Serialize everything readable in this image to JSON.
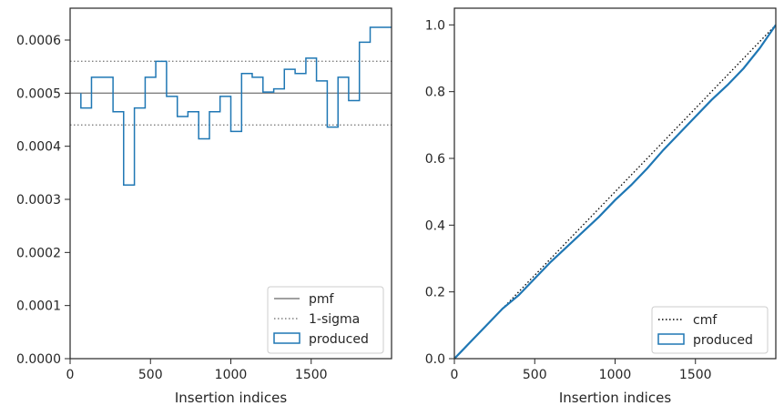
{
  "chart_data": [
    {
      "type": "step",
      "xlabel": "Insertion indices",
      "ylabel": "",
      "xlim": [
        0,
        2000
      ],
      "ylim": [
        0,
        0.00066
      ],
      "xticks": [
        0,
        500,
        1000,
        1500
      ],
      "xtick_labels": [
        "0",
        "500",
        "1000",
        "1500"
      ],
      "yticks": [
        0,
        0.0001,
        0.0002,
        0.0003,
        0.0004,
        0.0005,
        0.0006
      ],
      "ytick_labels": [
        "0.0000",
        "0.0001",
        "0.0002",
        "0.0003",
        "0.0004",
        "0.0005",
        "0.0006"
      ],
      "pmf": 0.0005,
      "sigma_band": [
        0.00044,
        0.00056
      ],
      "legend_position": "bottom-right",
      "legend": [
        {
          "label": "pmf",
          "style": "solid",
          "color": "#808080"
        },
        {
          "label": "1-sigma",
          "style": "dotted",
          "color": "#808080"
        },
        {
          "label": "produced",
          "style": "step",
          "color": "#1f77b4"
        }
      ],
      "bin_edges": [
        67,
        133,
        200,
        267,
        333,
        400,
        467,
        533,
        600,
        667,
        733,
        800,
        867,
        933,
        1000,
        1067,
        1133,
        1200,
        1267,
        1333,
        1400,
        1467,
        1533,
        1600,
        1667,
        1733,
        1800,
        1867,
        1933,
        2000
      ],
      "bin_values": [
        0.000472,
        0.00053,
        0.00053,
        0.000465,
        0.000327,
        0.000472,
        0.00053,
        0.00056,
        0.000494,
        0.000456,
        0.000465,
        0.000414,
        0.000465,
        0.000494,
        0.000428,
        0.000537,
        0.00053,
        0.000502,
        0.000508,
        0.000545,
        0.000537,
        0.000566,
        0.000523,
        0.000436,
        0.00053,
        0.000486,
        0.000596,
        0.000624,
        0.000624
      ]
    },
    {
      "type": "line",
      "xlabel": "Insertion indices",
      "ylabel": "",
      "xlim": [
        0,
        2000
      ],
      "ylim": [
        0,
        1.05
      ],
      "xticks": [
        0,
        500,
        1000,
        1500
      ],
      "xtick_labels": [
        "0",
        "500",
        "1000",
        "1500"
      ],
      "yticks": [
        0,
        0.2,
        0.4,
        0.6,
        0.8,
        1.0
      ],
      "ytick_labels": [
        "0.0",
        "0.2",
        "0.4",
        "0.6",
        "0.8",
        "1.0"
      ],
      "legend_position": "bottom-right",
      "series": [
        {
          "name": "cmf",
          "style": "dotted",
          "color": "#000000",
          "x": [
            0,
            2000
          ],
          "y": [
            0,
            1.0
          ]
        },
        {
          "name": "produced",
          "style": "step",
          "color": "#1f77b4",
          "x": [
            0,
            100,
            200,
            300,
            400,
            500,
            600,
            700,
            800,
            900,
            1000,
            1100,
            1200,
            1300,
            1400,
            1500,
            1600,
            1700,
            1800,
            1900,
            2000
          ],
          "y": [
            0,
            0.05,
            0.1,
            0.15,
            0.19,
            0.24,
            0.29,
            0.335,
            0.38,
            0.425,
            0.475,
            0.52,
            0.57,
            0.625,
            0.675,
            0.725,
            0.775,
            0.82,
            0.87,
            0.93,
            1.0
          ]
        }
      ]
    }
  ]
}
